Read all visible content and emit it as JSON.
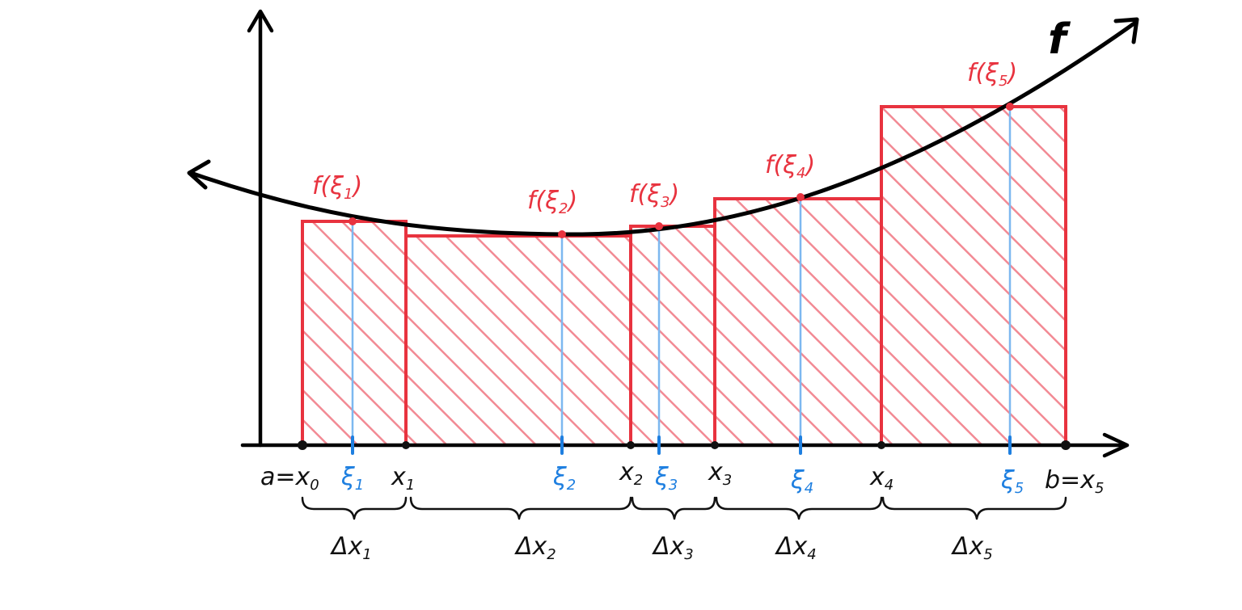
{
  "colors": {
    "axis": "#000000",
    "curve": "#000000",
    "rect_stroke": "#e8333f",
    "hatch": "#f28a94",
    "sample": "#1e7fe0",
    "sample_line": "#7db8f0",
    "point": "#e8333f"
  },
  "curve_label": "f",
  "partition": [
    {
      "main": "a=x",
      "sub": "0"
    },
    {
      "main": "x",
      "sub": "1"
    },
    {
      "main": "x",
      "sub": "2"
    },
    {
      "main": "x",
      "sub": "3"
    },
    {
      "main": "x",
      "sub": "4"
    },
    {
      "main": "b=x",
      "sub": "5"
    }
  ],
  "samples": [
    {
      "main": "ξ",
      "sub": "1"
    },
    {
      "main": "ξ",
      "sub": "2"
    },
    {
      "main": "ξ",
      "sub": "3"
    },
    {
      "main": "ξ",
      "sub": "4"
    },
    {
      "main": "ξ",
      "sub": "5"
    }
  ],
  "values": [
    {
      "pre": "f(ξ",
      "sub": "1",
      "post": ")"
    },
    {
      "pre": "f(ξ",
      "sub": "2",
      "post": ")"
    },
    {
      "pre": "f(ξ",
      "sub": "3",
      "post": ")"
    },
    {
      "pre": "f(ξ",
      "sub": "4",
      "post": ")"
    },
    {
      "pre": "f(ξ",
      "sub": "5",
      "post": ")"
    }
  ],
  "widths": [
    {
      "main": "Δx",
      "sub": "1"
    },
    {
      "main": "Δx",
      "sub": "2"
    },
    {
      "main": "Δx",
      "sub": "3"
    },
    {
      "main": "Δx",
      "sub": "4"
    },
    {
      "main": "Δx",
      "sub": "5"
    }
  ]
}
